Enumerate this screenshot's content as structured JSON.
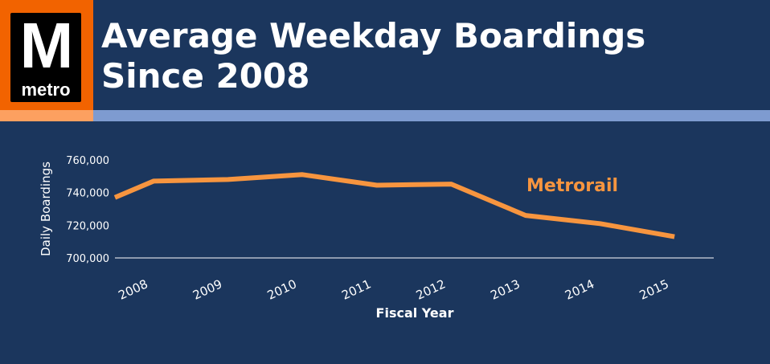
{
  "logo": {
    "letter": "M",
    "word": "metro"
  },
  "header": {
    "title_line1": "Average Weekday Boardings",
    "title_line2": "Since 2008"
  },
  "colors": {
    "background": "#1b365d",
    "line": "#f7953f",
    "logo": "#f26300",
    "accent_blue": "#7e9bd0"
  },
  "chart_data": {
    "type": "line",
    "title": "Average Weekday Boardings Since 2008",
    "xlabel": "Fiscal Year",
    "ylabel": "Daily Boardings",
    "ylim": [
      700000,
      760000
    ],
    "yticks": [
      "700,000",
      "720,000",
      "740,000",
      "760,000"
    ],
    "ytick_values": [
      700000,
      720000,
      740000,
      760000
    ],
    "categories": [
      "2008",
      "2009",
      "2010",
      "2011",
      "2012",
      "2013",
      "2014",
      "2015"
    ],
    "line_start_value": 737000,
    "series": [
      {
        "name": "Metrorail",
        "values": [
          747000,
          748000,
          751000,
          744500,
          745200,
          726000,
          721000,
          713000
        ]
      }
    ],
    "grid": false,
    "legend": "series label inline, upper right"
  }
}
